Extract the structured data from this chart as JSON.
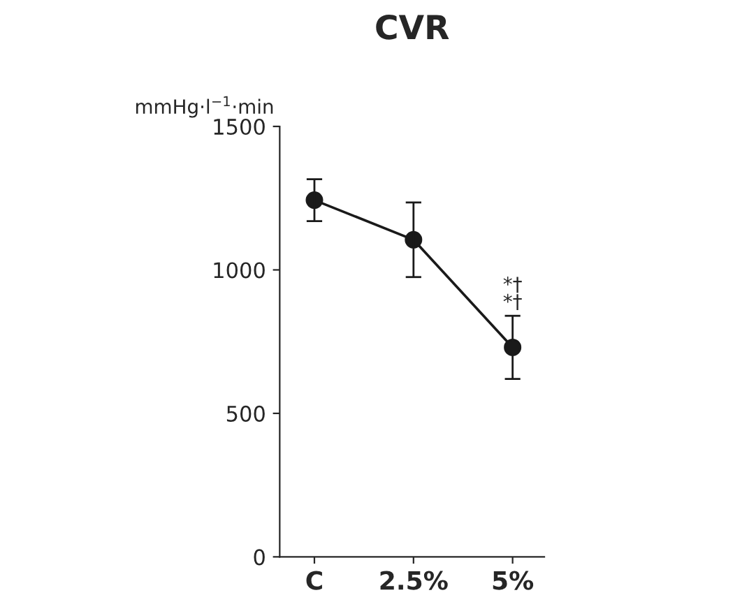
{
  "chart_data": {
    "type": "line",
    "title": "CVR",
    "ylabel": "mmHg·l$^{−1}$·min",
    "categories": [
      "C",
      "2.5%",
      "5%"
    ],
    "series": [
      {
        "color": "#1a1a1a",
        "values": [
          1243,
          1105,
          730
        ],
        "errors": [
          73,
          130,
          110
        ]
      }
    ],
    "ylim": [
      0,
      1500
    ],
    "yticks": [
      0,
      500,
      1000,
      1500
    ],
    "marker": "circle",
    "line_style": "solid",
    "annotations": [
      "*†\n*†"
    ]
  }
}
